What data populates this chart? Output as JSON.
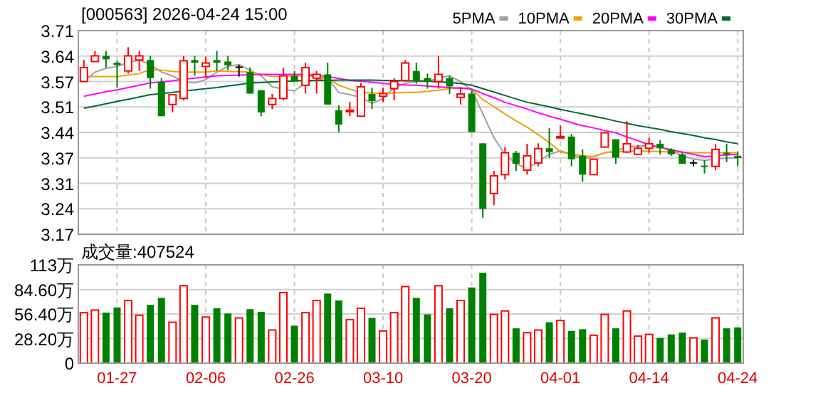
{
  "chart_data": [
    {
      "type": "candlestick",
      "title": "[000563] 2026-04-24 15:00",
      "categories": [
        null,
        null,
        null,
        null,
        null,
        null,
        null,
        null,
        null,
        null,
        null,
        null,
        null,
        null,
        null,
        null,
        null,
        null,
        null,
        null,
        null,
        null,
        null,
        null,
        null,
        null,
        null,
        null,
        null,
        null,
        null,
        null,
        null,
        null,
        null,
        null,
        null,
        null,
        null,
        null,
        null,
        null,
        null,
        null,
        null,
        null,
        null,
        null,
        null,
        null,
        null,
        null,
        null,
        null,
        null,
        null,
        null,
        null,
        null,
        null
      ],
      "ohlc": [
        [
          3.575,
          3.632,
          3.575,
          3.612
        ],
        [
          3.628,
          3.656,
          3.628,
          3.643
        ],
        [
          3.643,
          3.656,
          3.612,
          3.634
        ],
        [
          3.625,
          3.63,
          3.559,
          3.619
        ],
        [
          3.603,
          3.666,
          3.596,
          3.643
        ],
        [
          3.632,
          3.656,
          3.603,
          3.643
        ],
        [
          3.632,
          3.643,
          3.556,
          3.584
        ],
        [
          3.574,
          3.584,
          3.483,
          3.483
        ],
        [
          3.514,
          3.54,
          3.493,
          3.54
        ],
        [
          3.53,
          3.643,
          3.525,
          3.63
        ],
        [
          3.632,
          3.643,
          3.59,
          3.625
        ],
        [
          3.615,
          3.641,
          3.584,
          3.624
        ],
        [
          3.632,
          3.656,
          3.603,
          3.625
        ],
        [
          3.628,
          3.643,
          3.605,
          3.618
        ],
        [
          3.613,
          3.619,
          3.588,
          3.613
        ],
        [
          3.6,
          3.612,
          3.543,
          3.543
        ],
        [
          3.552,
          3.552,
          3.483,
          3.493
        ],
        [
          3.514,
          3.542,
          3.502,
          3.53
        ],
        [
          3.53,
          3.612,
          3.525,
          3.59
        ],
        [
          3.59,
          3.603,
          3.575,
          3.575
        ],
        [
          3.565,
          3.625,
          3.543,
          3.612
        ],
        [
          3.584,
          3.603,
          3.543,
          3.594
        ],
        [
          3.594,
          3.625,
          3.514,
          3.514
        ],
        [
          3.499,
          3.512,
          3.441,
          3.461
        ],
        [
          3.495,
          3.521,
          3.483,
          3.499
        ],
        [
          3.483,
          3.571,
          3.483,
          3.561
        ],
        [
          3.542,
          3.559,
          3.502,
          3.523
        ],
        [
          3.536,
          3.559,
          3.521,
          3.543
        ],
        [
          3.556,
          3.584,
          3.525,
          3.575
        ],
        [
          3.578,
          3.632,
          3.575,
          3.624
        ],
        [
          3.603,
          3.625,
          3.569,
          3.575
        ],
        [
          3.584,
          3.596,
          3.556,
          3.575
        ],
        [
          3.575,
          3.643,
          3.556,
          3.594
        ],
        [
          3.584,
          3.59,
          3.542,
          3.562
        ],
        [
          3.533,
          3.559,
          3.514,
          3.542
        ],
        [
          3.543,
          3.552,
          3.441,
          3.441
        ],
        [
          3.411,
          3.411,
          3.214,
          3.237
        ],
        [
          3.278,
          3.338,
          3.247,
          3.325
        ],
        [
          3.328,
          3.401,
          3.315,
          3.386
        ],
        [
          3.386,
          3.391,
          3.338,
          3.357
        ],
        [
          3.34,
          3.41,
          3.328,
          3.378
        ],
        [
          3.359,
          3.411,
          3.35,
          3.397
        ],
        [
          3.398,
          3.451,
          3.372,
          3.388
        ],
        [
          3.426,
          3.458,
          3.426,
          3.429
        ],
        [
          3.429,
          3.436,
          3.35,
          3.369
        ],
        [
          3.378,
          3.395,
          3.309,
          3.328
        ],
        [
          3.328,
          3.369,
          3.328,
          3.369
        ],
        [
          3.401,
          3.439,
          3.401,
          3.439
        ],
        [
          3.422,
          3.422,
          3.357,
          3.373
        ],
        [
          3.388,
          3.47,
          3.386,
          3.41
        ],
        [
          3.382,
          3.407,
          3.382,
          3.398
        ],
        [
          3.398,
          3.426,
          3.386,
          3.41
        ],
        [
          3.41,
          3.42,
          3.382,
          3.398
        ],
        [
          3.395,
          3.398,
          3.378,
          3.382
        ],
        [
          3.382,
          3.386,
          3.357,
          3.357
        ],
        [
          3.359,
          3.367,
          3.35,
          3.359
        ],
        [
          3.352,
          3.366,
          3.331,
          3.35
        ],
        [
          3.35,
          3.41,
          3.34,
          3.395
        ],
        [
          3.386,
          3.41,
          3.361,
          3.382
        ],
        [
          3.378,
          3.388,
          3.35,
          3.372
        ]
      ],
      "colors": [
        "#ff0000",
        "#ff0000",
        "#008000",
        "#008000",
        "#ff0000",
        "#ff0000",
        "#008000",
        "#008000",
        "#ff0000",
        "#ff0000",
        "#008000",
        "#ff0000",
        "#008000",
        "#008000",
        "#000000",
        "#008000",
        "#008000",
        "#ff0000",
        "#ff0000",
        "#008000",
        "#ff0000",
        "#ff0000",
        "#008000",
        "#008000",
        "#ff0000",
        "#ff0000",
        "#008000",
        "#ff0000",
        "#ff0000",
        "#ff0000",
        "#008000",
        "#008000",
        "#ff0000",
        "#008000",
        "#ff0000",
        "#008000",
        "#008000",
        "#ff0000",
        "#ff0000",
        "#008000",
        "#ff0000",
        "#ff0000",
        "#008000",
        "#ff0000",
        "#008000",
        "#008000",
        "#ff0000",
        "#ff0000",
        "#008000",
        "#ff0000",
        "#ff0000",
        "#ff0000",
        "#008000",
        "#008000",
        "#008000",
        "#000000",
        "#008000",
        "#ff0000",
        "#008000",
        "#008000"
      ],
      "series": [
        {
          "name": "5PMA",
          "type": "line",
          "color": "#a0a0a0",
          "values": [
            3.575,
            3.6,
            3.61,
            3.615,
            3.625,
            3.632,
            3.62,
            3.6,
            3.59,
            3.575,
            3.571,
            3.58,
            3.6,
            3.615,
            3.62,
            3.605,
            3.59,
            3.561,
            3.555,
            3.55,
            3.571,
            3.58,
            3.584,
            3.546,
            3.54,
            3.533,
            3.517,
            3.53,
            3.559,
            3.57,
            3.575,
            3.575,
            3.584,
            3.59,
            3.575,
            3.552,
            3.489,
            3.426,
            3.382,
            3.357,
            3.344,
            3.363,
            3.382,
            3.391,
            3.382,
            3.369,
            3.376,
            3.386,
            3.391,
            3.401,
            3.404,
            3.404,
            3.401,
            3.391,
            3.378,
            3.369,
            3.366,
            3.369,
            3.372,
            3.372
          ]
        },
        {
          "name": "10PMA",
          "type": "line",
          "color": "#f0a000",
          "values": [
            3.588,
            3.588,
            3.588,
            3.588,
            3.592,
            3.596,
            3.607,
            3.605,
            3.602,
            3.6,
            3.6,
            3.6,
            3.603,
            3.602,
            3.601,
            3.6,
            3.594,
            3.588,
            3.589,
            3.59,
            3.59,
            3.588,
            3.584,
            3.565,
            3.555,
            3.546,
            3.545,
            3.544,
            3.545,
            3.546,
            3.546,
            3.549,
            3.552,
            3.556,
            3.559,
            3.555,
            3.527,
            3.508,
            3.489,
            3.471,
            3.454,
            3.434,
            3.413,
            3.388,
            3.383,
            3.378,
            3.376,
            3.386,
            3.388,
            3.39,
            3.391,
            3.39,
            3.389,
            3.388,
            3.387,
            3.386,
            3.386,
            3.386,
            3.386,
            3.386
          ]
        },
        {
          "name": "20PMA",
          "type": "line",
          "color": "#ff00ff",
          "values": [
            3.536,
            3.542,
            3.548,
            3.553,
            3.559,
            3.565,
            3.571,
            3.574,
            3.577,
            3.581,
            3.584,
            3.587,
            3.59,
            3.591,
            3.592,
            3.593,
            3.594,
            3.594,
            3.594,
            3.594,
            3.594,
            3.592,
            3.588,
            3.583,
            3.578,
            3.576,
            3.573,
            3.57,
            3.568,
            3.566,
            3.565,
            3.563,
            3.561,
            3.559,
            3.557,
            3.555,
            3.543,
            3.532,
            3.52,
            3.511,
            3.502,
            3.492,
            3.483,
            3.475,
            3.466,
            3.458,
            3.452,
            3.445,
            3.439,
            3.428,
            3.418,
            3.407,
            3.401,
            3.394,
            3.388,
            3.382,
            3.376,
            3.378,
            3.38,
            3.382
          ]
        },
        {
          "name": "30PMA",
          "type": "line",
          "color": "#006a30",
          "values": [
            3.504,
            3.51,
            3.516,
            3.522,
            3.528,
            3.534,
            3.54,
            3.543,
            3.546,
            3.55,
            3.553,
            3.556,
            3.559,
            3.563,
            3.567,
            3.571,
            3.572,
            3.574,
            3.575,
            3.577,
            3.578,
            3.578,
            3.578,
            3.579,
            3.579,
            3.579,
            3.579,
            3.578,
            3.578,
            3.577,
            3.577,
            3.576,
            3.574,
            3.572,
            3.57,
            3.565,
            3.556,
            3.547,
            3.538,
            3.529,
            3.52,
            3.514,
            3.508,
            3.501,
            3.495,
            3.489,
            3.483,
            3.477,
            3.47,
            3.464,
            3.458,
            3.453,
            3.448,
            3.442,
            3.437,
            3.432,
            3.426,
            3.421,
            3.415,
            3.41
          ]
        }
      ],
      "ylim": [
        3.17,
        3.71
      ],
      "yticks": [
        {
          "value": 3.17,
          "label": "3.17"
        },
        {
          "value": 3.2375,
          "label": "3.24"
        },
        {
          "value": 3.305,
          "label": "3.31"
        },
        {
          "value": 3.3725,
          "label": "3.37"
        },
        {
          "value": 3.44,
          "label": "3.44"
        },
        {
          "value": 3.5075,
          "label": "3.51"
        },
        {
          "value": 3.575,
          "label": "3.57"
        },
        {
          "value": 3.6425,
          "label": "3.64"
        },
        {
          "value": 3.71,
          "label": "3.71"
        }
      ],
      "grid": true,
      "legend": "top right",
      "tick_labels": "y"
    },
    {
      "type": "bar",
      "title": "成交量:407524",
      "categories": [
        null,
        null,
        null,
        "01-27",
        null,
        null,
        null,
        null,
        null,
        null,
        null,
        "02-06",
        null,
        null,
        null,
        null,
        null,
        null,
        null,
        "02-26",
        null,
        null,
        null,
        null,
        null,
        null,
        null,
        "03-10",
        null,
        null,
        null,
        null,
        null,
        null,
        null,
        "03-20",
        null,
        null,
        null,
        null,
        null,
        null,
        null,
        "04-01",
        null,
        null,
        null,
        null,
        null,
        null,
        null,
        "04-14",
        null,
        null,
        null,
        null,
        null,
        null,
        null,
        "04-24"
      ],
      "values": [
        58,
        61,
        58,
        64,
        72,
        55,
        67,
        75,
        47,
        89,
        67,
        53,
        63,
        57,
        52,
        62,
        59,
        38,
        81,
        43,
        58,
        72,
        80,
        72,
        50,
        63,
        52,
        37,
        58,
        88,
        75,
        56,
        89,
        63,
        72,
        87,
        104,
        56,
        60,
        40,
        35,
        38,
        47,
        49,
        37,
        39,
        32,
        56,
        40,
        60,
        31,
        33,
        29,
        33,
        35,
        29,
        27,
        52,
        40,
        41
      ],
      "colors": [
        "#ff0000",
        "#ff0000",
        "#008000",
        "#008000",
        "#ff0000",
        "#ff0000",
        "#008000",
        "#008000",
        "#ff0000",
        "#ff0000",
        "#008000",
        "#ff0000",
        "#008000",
        "#008000",
        "#ff0000",
        "#008000",
        "#008000",
        "#ff0000",
        "#ff0000",
        "#008000",
        "#ff0000",
        "#ff0000",
        "#008000",
        "#008000",
        "#ff0000",
        "#ff0000",
        "#008000",
        "#ff0000",
        "#ff0000",
        "#ff0000",
        "#008000",
        "#008000",
        "#ff0000",
        "#008000",
        "#ff0000",
        "#008000",
        "#008000",
        "#ff0000",
        "#ff0000",
        "#008000",
        "#ff0000",
        "#ff0000",
        "#008000",
        "#ff0000",
        "#008000",
        "#008000",
        "#ff0000",
        "#ff0000",
        "#008000",
        "#ff0000",
        "#ff0000",
        "#ff0000",
        "#008000",
        "#008000",
        "#008000",
        "#ff0000",
        "#008000",
        "#ff0000",
        "#008000",
        "#008000"
      ],
      "ylim": [
        0,
        113
      ],
      "yticks": [
        {
          "value": 0,
          "label": "0"
        },
        {
          "value": 28.2,
          "label": "28.20万"
        },
        {
          "value": 56.4,
          "label": "56.40万"
        },
        {
          "value": 84.6,
          "label": "84.60万"
        },
        {
          "value": 113,
          "label": "113万"
        }
      ],
      "grid": true
    }
  ]
}
